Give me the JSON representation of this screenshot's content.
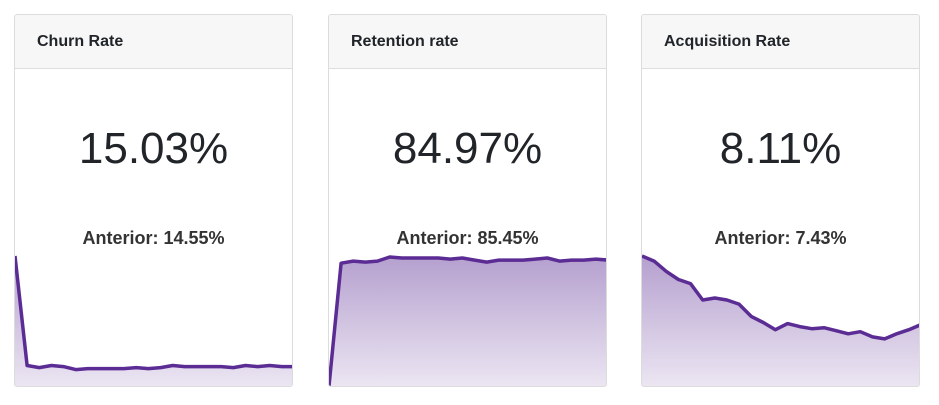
{
  "accent_color": "#5b2c94",
  "cards": [
    {
      "title": "Churn Rate",
      "value": "15.03%",
      "previous": "Anterior: 14.55%",
      "sparkline": [
        127,
        20,
        18,
        20,
        19,
        16,
        17,
        17,
        17,
        17,
        18,
        17,
        18,
        20,
        19,
        19,
        19,
        19,
        18,
        20,
        19,
        20,
        19,
        19
      ]
    },
    {
      "title": "Retention rate",
      "value": "84.97%",
      "previous": "Anterior: 85.45%",
      "sparkline": [
        0,
        120,
        122,
        121,
        122,
        126,
        125,
        125,
        125,
        125,
        124,
        125,
        123,
        121,
        123,
        123,
        123,
        124,
        125,
        122,
        123,
        123,
        124,
        123
      ]
    },
    {
      "title": "Acquisition Rate",
      "value": "8.11%",
      "previous": "Anterior: 7.43%",
      "sparkline": [
        127,
        122,
        112,
        104,
        100,
        84,
        86,
        84,
        80,
        68,
        62,
        55,
        61,
        58,
        56,
        57,
        54,
        51,
        53,
        48,
        46,
        51,
        55,
        60
      ]
    }
  ]
}
